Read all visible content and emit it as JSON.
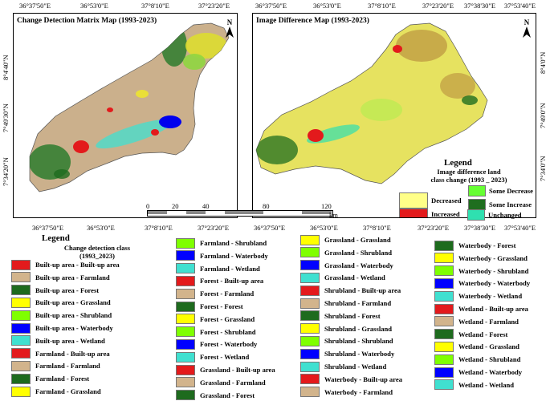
{
  "map_left": {
    "title": "Change Detection Matrix Map (1993-2023)",
    "north_label": "N",
    "top_coords": [
      "36°37'50\"E",
      "36°53'0\"E",
      "37°8'10\"E",
      "37°23'20\"E"
    ],
    "bottom_coords": [
      "36°37'50\"E",
      "36°53'0\"E",
      "37°8'10\"E",
      "37°23'20\"E"
    ],
    "left_coords": [
      "8°4'40\"N",
      "7°49'30\"N",
      "7°34'20\"N"
    ]
  },
  "map_right": {
    "title": "Image Difference Map (1993-2023)",
    "north_label": "N",
    "top_coords": [
      "36°37'50\"E",
      "36°53'0\"E",
      "37°8'10\"E",
      "37°23'20\"E",
      "37°38'30\"E",
      "37°53'40\"E"
    ],
    "bottom_coords": [
      "37°38'30\"E",
      "37°53'40\"E"
    ],
    "right_coords": [
      "8°4'0\"N",
      "7°49'0\"N",
      "7°34'0\"N"
    ]
  },
  "scale_bar": {
    "ticks": [
      "0",
      "20",
      "40",
      "80",
      "120"
    ],
    "unit": "km"
  },
  "diff_legend": {
    "title": "Legend",
    "subtitle_line1": "Image difference  land",
    "subtitle_line2": "class change (1993 _ 2023)",
    "items": [
      {
        "label": "Decreased",
        "color": "#ffff88"
      },
      {
        "label": "Increased",
        "color": "#e31a1c"
      },
      {
        "label": "Some Decrease",
        "color": "#66ff33"
      },
      {
        "label": "Some Increase",
        "color": "#1f6e1f"
      },
      {
        "label": "Unchanged",
        "color": "#2fe0b0"
      }
    ]
  },
  "change_legend": {
    "title": "Legend",
    "subtitle_line1": "Change detection class",
    "subtitle_line2": "(1993_2023)",
    "columns": [
      [
        {
          "label": "Built-up area - Built-up area",
          "color": "#e31a1c"
        },
        {
          "label": "Built-up area - Farmland",
          "color": "#d2b48c"
        },
        {
          "label": "Built-up area - Forest",
          "color": "#1e6b1e"
        },
        {
          "label": "Built-up area - Grassland",
          "color": "#ffff00"
        },
        {
          "label": "Built-up area - Shrubland",
          "color": "#7fff00"
        },
        {
          "label": "Built-up area - Waterbody",
          "color": "#0000ff"
        },
        {
          "label": "Built-up area - Wetland",
          "color": "#40e0d0"
        },
        {
          "label": "Farmland - Built-up area",
          "color": "#e31a1c"
        },
        {
          "label": "Farmland - Farmland",
          "color": "#d2b48c"
        },
        {
          "label": "Farmland - Forest",
          "color": "#1e6b1e"
        },
        {
          "label": "Farmland - Grassland",
          "color": "#ffff00"
        }
      ],
      [
        {
          "label": "Farmland - Shrubland",
          "color": "#7fff00"
        },
        {
          "label": "Farmland - Waterbody",
          "color": "#0000ff"
        },
        {
          "label": "Farmland - Wetland",
          "color": "#40e0d0"
        },
        {
          "label": "Forest - Built-up area",
          "color": "#e31a1c"
        },
        {
          "label": "Forest - Farmland",
          "color": "#d2b48c"
        },
        {
          "label": "Forest - Forest",
          "color": "#1e6b1e"
        },
        {
          "label": "Forest - Grassland",
          "color": "#ffff00"
        },
        {
          "label": "Forest - Shrubland",
          "color": "#7fff00"
        },
        {
          "label": "Forest - Waterbody",
          "color": "#0000ff"
        },
        {
          "label": "Forest - Wetland",
          "color": "#40e0d0"
        },
        {
          "label": "Grassland - Built-up area",
          "color": "#e31a1c"
        },
        {
          "label": "Grassland - Farmland",
          "color": "#d2b48c"
        },
        {
          "label": "Grassland - Forest",
          "color": "#1e6b1e"
        }
      ],
      [
        {
          "label": "Grassland - Grassland",
          "color": "#ffff00"
        },
        {
          "label": "Grassland - Shrubland",
          "color": "#7fff00"
        },
        {
          "label": "Grassland - Waterbody",
          "color": "#0000ff"
        },
        {
          "label": "Grassland - Wetland",
          "color": "#40e0d0"
        },
        {
          "label": "Shrubland - Built-up area",
          "color": "#e31a1c"
        },
        {
          "label": "Shrubland - Farmland",
          "color": "#d2b48c"
        },
        {
          "label": "Shrubland - Forest",
          "color": "#1e6b1e"
        },
        {
          "label": "Shrubland - Grassland",
          "color": "#ffff00"
        },
        {
          "label": "Shrubland - Shrubland",
          "color": "#7fff00"
        },
        {
          "label": "Shrubland - Waterbody",
          "color": "#0000ff"
        },
        {
          "label": "Shrubland - Wetland",
          "color": "#40e0d0"
        },
        {
          "label": "Waterbody - Built-up area",
          "color": "#e31a1c"
        },
        {
          "label": "Waterbody - Farmland",
          "color": "#d2b48c"
        }
      ],
      [
        {
          "label": "Waterbody - Forest",
          "color": "#1e6b1e"
        },
        {
          "label": "Waterbody - Grassland",
          "color": "#ffff00"
        },
        {
          "label": "Waterbody - Shrubland",
          "color": "#7fff00"
        },
        {
          "label": "Waterbody - Waterbody",
          "color": "#0000ff"
        },
        {
          "label": "Waterbody - Wetland",
          "color": "#40e0d0"
        },
        {
          "label": "Wetland - Built-up area",
          "color": "#e31a1c"
        },
        {
          "label": "Wetland - Farmland",
          "color": "#d2b48c"
        },
        {
          "label": "Wetland - Forest",
          "color": "#1e6b1e"
        },
        {
          "label": "Wetland - Grassland",
          "color": "#ffff00"
        },
        {
          "label": "Wetland - Shrubland",
          "color": "#7fff00"
        },
        {
          "label": "Wetland - Waterbody",
          "color": "#0000ff"
        },
        {
          "label": "Wetland - Wetland",
          "color": "#40e0d0"
        }
      ]
    ]
  }
}
